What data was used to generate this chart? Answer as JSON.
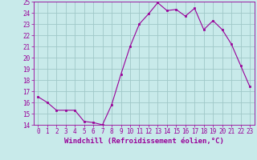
{
  "x": [
    0,
    1,
    2,
    3,
    4,
    5,
    6,
    7,
    8,
    9,
    10,
    11,
    12,
    13,
    14,
    15,
    16,
    17,
    18,
    19,
    20,
    21,
    22,
    23
  ],
  "y": [
    16.5,
    16.0,
    15.3,
    15.3,
    15.3,
    14.3,
    14.2,
    14.0,
    15.8,
    18.5,
    21.0,
    23.0,
    23.9,
    24.9,
    24.2,
    24.3,
    23.7,
    24.4,
    22.5,
    23.3,
    22.5,
    21.2,
    19.3,
    17.4
  ],
  "ylim": [
    14,
    25
  ],
  "yticks": [
    14,
    15,
    16,
    17,
    18,
    19,
    20,
    21,
    22,
    23,
    24,
    25
  ],
  "xticks": [
    0,
    1,
    2,
    3,
    4,
    5,
    6,
    7,
    8,
    9,
    10,
    11,
    12,
    13,
    14,
    15,
    16,
    17,
    18,
    19,
    20,
    21,
    22,
    23
  ],
  "xlabel": "Windchill (Refroidissement éolien,°C)",
  "line_color": "#990099",
  "marker_color": "#990099",
  "bg_color": "#c8eaea",
  "grid_color": "#a0c8c8",
  "tick_fontsize": 5.5,
  "label_fontsize": 6.5
}
